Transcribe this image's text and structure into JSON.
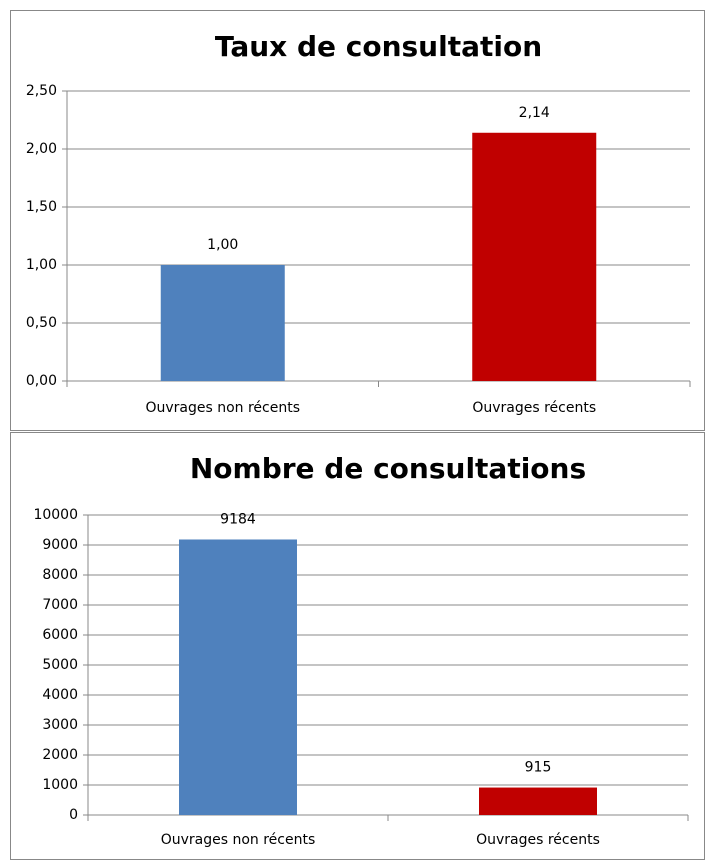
{
  "chart_data": [
    {
      "type": "bar",
      "title": "Taux de consultation",
      "categories": [
        "Ouvrages non récents",
        "Ouvrages récents"
      ],
      "values": [
        1.0,
        2.14
      ],
      "value_labels": [
        "1,00",
        "2,14"
      ],
      "colors": [
        "#4f81bd",
        "#c00000"
      ],
      "ylim": [
        0,
        2.5
      ],
      "yticks": [
        {
          "value": 0,
          "label": "0,00"
        },
        {
          "value": 0.5,
          "label": "0,50"
        },
        {
          "value": 1,
          "label": "1,00"
        },
        {
          "value": 1.5,
          "label": "1,50"
        },
        {
          "value": 2,
          "label": "2,00"
        },
        {
          "value": 2.5,
          "label": "2,50"
        }
      ],
      "grid": true
    },
    {
      "type": "bar",
      "title": "Nombre de consultations",
      "categories": [
        "Ouvrages non récents",
        "Ouvrages récents"
      ],
      "values": [
        9184,
        915
      ],
      "colors": [
        "#4f81bd",
        "#c00000"
      ],
      "ylim": [
        0,
        10000
      ],
      "yticks": [
        0,
        1000,
        2000,
        3000,
        4000,
        5000,
        6000,
        7000,
        8000,
        9000,
        10000
      ],
      "grid": true
    }
  ]
}
